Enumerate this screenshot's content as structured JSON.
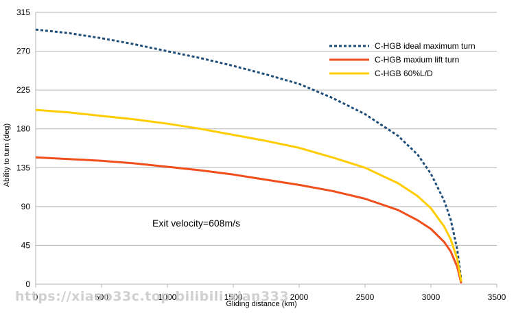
{
  "chart_data": {
    "type": "line",
    "title": "",
    "xlabel": "Gliding distance  (km)",
    "ylabel": "Ability to turn (deg)",
    "xlim": [
      0,
      3500
    ],
    "ylim": [
      0,
      315
    ],
    "xticks": [
      0,
      500,
      1000,
      1500,
      2000,
      2500,
      3000,
      3500
    ],
    "yticks": [
      0,
      45,
      90,
      135,
      180,
      225,
      270,
      315
    ],
    "grid": "horizontal",
    "legend_position": "top-right",
    "annotation": "Exit velocity=608m/s",
    "watermark": "https://xiaoo33c.top bilibili xian333",
    "series": [
      {
        "name": "C-HGB ideal maximum turn",
        "color": "#1f4e79",
        "style": "dashed",
        "points": [
          [
            0,
            295
          ],
          [
            250,
            291
          ],
          [
            500,
            285
          ],
          [
            750,
            278
          ],
          [
            1000,
            270
          ],
          [
            1250,
            262
          ],
          [
            1500,
            253
          ],
          [
            1750,
            243
          ],
          [
            2000,
            232
          ],
          [
            2250,
            216
          ],
          [
            2500,
            197
          ],
          [
            2750,
            172
          ],
          [
            2900,
            150
          ],
          [
            3000,
            128
          ],
          [
            3100,
            97
          ],
          [
            3150,
            75
          ],
          [
            3200,
            40
          ],
          [
            3230,
            5
          ]
        ]
      },
      {
        "name": "C-HGB maxium lift turn",
        "color": "#f04e1b",
        "style": "solid",
        "points": [
          [
            0,
            147
          ],
          [
            250,
            145
          ],
          [
            500,
            143
          ],
          [
            750,
            140
          ],
          [
            1000,
            136
          ],
          [
            1250,
            132
          ],
          [
            1500,
            127
          ],
          [
            1750,
            121
          ],
          [
            2000,
            115
          ],
          [
            2250,
            108
          ],
          [
            2500,
            99
          ],
          [
            2750,
            86
          ],
          [
            2900,
            74
          ],
          [
            3000,
            64
          ],
          [
            3100,
            49
          ],
          [
            3150,
            38
          ],
          [
            3200,
            20
          ],
          [
            3230,
            1
          ]
        ]
      },
      {
        "name": "C-HGB 60%L/D",
        "color": "#ffcc00",
        "style": "solid",
        "points": [
          [
            0,
            202
          ],
          [
            250,
            199
          ],
          [
            500,
            195
          ],
          [
            750,
            191
          ],
          [
            1000,
            186
          ],
          [
            1250,
            180
          ],
          [
            1500,
            173
          ],
          [
            1750,
            166
          ],
          [
            2000,
            158
          ],
          [
            2250,
            147
          ],
          [
            2500,
            135
          ],
          [
            2750,
            117
          ],
          [
            2900,
            102
          ],
          [
            3000,
            88
          ],
          [
            3100,
            67
          ],
          [
            3150,
            52
          ],
          [
            3200,
            29
          ],
          [
            3230,
            3
          ]
        ]
      }
    ]
  }
}
